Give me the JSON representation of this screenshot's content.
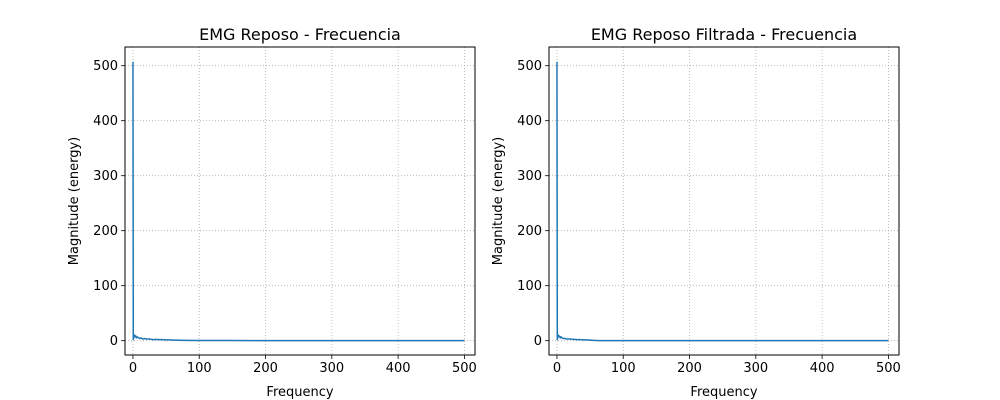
{
  "chart_data": [
    {
      "type": "line",
      "title": "EMG Reposo - Frecuencia",
      "xlabel": "Frequency",
      "ylabel": "Magnitude (energy)",
      "xlim": [
        -12,
        516
      ],
      "ylim": [
        -26,
        534
      ],
      "xticks": [
        0,
        100,
        200,
        300,
        400,
        500
      ],
      "yticks": [
        0,
        100,
        200,
        300,
        400,
        500
      ],
      "grid": true,
      "series": [
        {
          "color": "#1f77b4",
          "x": [
            0,
            0.5,
            1,
            1.5,
            2,
            3,
            4,
            5,
            6,
            8,
            10,
            12,
            15,
            18,
            20,
            25,
            30,
            35,
            40,
            45,
            50,
            55,
            60,
            65,
            70,
            80,
            100,
            150,
            200,
            300,
            400,
            500
          ],
          "y": [
            507,
            2,
            12,
            6,
            10,
            8,
            9,
            5,
            7,
            6,
            4,
            5,
            3,
            4,
            3,
            3,
            2,
            2.5,
            2,
            2,
            1.5,
            1.5,
            1,
            1,
            0.8,
            0.6,
            0.4,
            0.3,
            0.2,
            0.2,
            0.1,
            0.1
          ]
        }
      ]
    },
    {
      "type": "line",
      "title": "EMG Reposo Filtrada - Frecuencia",
      "xlabel": "Frequency",
      "ylabel": "Magnitude (energy)",
      "xlim": [
        -12,
        516
      ],
      "ylim": [
        -26,
        534
      ],
      "xticks": [
        0,
        100,
        200,
        300,
        400,
        500
      ],
      "yticks": [
        0,
        100,
        200,
        300,
        400,
        500
      ],
      "grid": true,
      "series": [
        {
          "color": "#1f77b4",
          "x": [
            0,
            0.5,
            1,
            1.5,
            2,
            3,
            4,
            5,
            6,
            8,
            10,
            12,
            15,
            18,
            20,
            25,
            30,
            35,
            40,
            45,
            50,
            55,
            60,
            65,
            70,
            80,
            100,
            150,
            200,
            300,
            400,
            500
          ],
          "y": [
            507,
            2,
            12,
            6,
            10,
            8,
            8,
            5,
            7,
            5,
            4,
            4,
            3,
            3,
            3,
            2.5,
            2,
            2,
            1.5,
            1.5,
            1,
            0.5,
            0.3,
            0.2,
            0.2,
            0.1,
            0.1,
            0.1,
            0.1,
            0.1,
            0.1,
            0.1
          ]
        }
      ]
    }
  ]
}
